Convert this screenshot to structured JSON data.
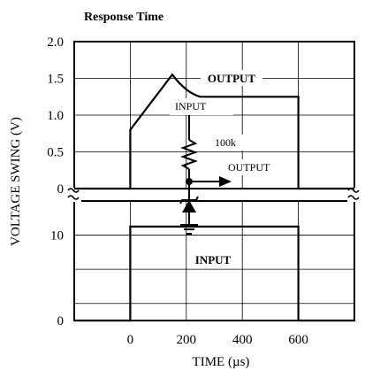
{
  "chart_data": [
    {
      "type": "line",
      "title": "Response Time",
      "xlabel": "TIME (µs)",
      "ylabel": "VOLTAGE SWING (V)",
      "xlim": [
        -200,
        800
      ],
      "x_ticks": [
        "0",
        "200",
        "400",
        "600"
      ],
      "grid": true,
      "panels": [
        {
          "name": "output",
          "ylim": [
            0,
            2.0
          ],
          "y_ticks": [
            "2.0",
            "1.5",
            "1.0",
            "0.5",
            "0"
          ],
          "series": [
            {
              "name": "OUTPUT",
              "x": [
                -200,
                0,
                0,
                150,
                200,
                250,
                600,
                600,
                800
              ],
              "y": [
                0,
                0,
                0.8,
                1.55,
                1.3,
                1.25,
                1.25,
                0,
                0
              ]
            }
          ]
        },
        {
          "name": "input",
          "ylim": [
            0,
            14
          ],
          "y_ticks": [
            "10",
            "0"
          ],
          "series": [
            {
              "name": "INPUT",
              "x": [
                -200,
                0,
                0,
                600,
                600,
                800
              ],
              "y": [
                0,
                0,
                11,
                11,
                0,
                0
              ]
            }
          ]
        }
      ],
      "inset_circuit": {
        "input_label": "INPUT",
        "resistor_label": "100k",
        "output_label": "OUTPUT"
      }
    }
  ]
}
